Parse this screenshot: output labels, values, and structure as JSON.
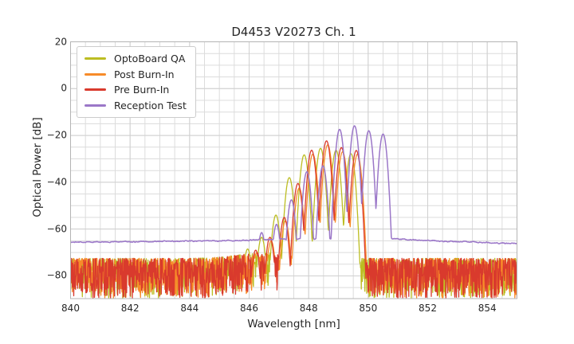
{
  "chart_data": {
    "type": "line",
    "title": "D4453 V20273 Ch. 1",
    "xlabel": "Wavelength [nm]",
    "ylabel": "Optical Power [dB]",
    "xlim": [
      840,
      855
    ],
    "ylim": [
      -89.7,
      20
    ],
    "x_major_ticks": [
      840,
      842,
      844,
      846,
      848,
      850,
      852,
      854
    ],
    "x_tick_labels": [
      "840",
      "842",
      "844",
      "846",
      "848",
      "850",
      "852",
      "854"
    ],
    "x_minor_step": 0.5,
    "y_major_ticks": [
      20,
      0,
      -20,
      -40,
      -60,
      -80
    ],
    "y_tick_labels": [
      "20",
      "0",
      "−20",
      "−40",
      "−60",
      "−80"
    ],
    "y_minor_step": 5,
    "grid": "major+minor",
    "legend_position": "upper left",
    "style": {
      "background": "#ffffff",
      "grid_minor_color": "#dcdcdc",
      "grid_major_color": "#d0d0d0",
      "spine_color": "#b4b4b4",
      "text_color": "#262626"
    },
    "noise_model": {
      "top_db": -72.5,
      "depth_db": 17,
      "shape_exp": 1.6,
      "onset_lift_db": 2.3,
      "onset_center_nm": 846.45,
      "onset_sigma_nm": 0.85,
      "clip_db": -89.7
    },
    "series": [
      {
        "name": "OptoBoard QA",
        "color": "#bcbd22",
        "kind": "modal+noise",
        "seed": 11,
        "mode_spacing_nm": 0.48,
        "valley_drop_db": 30,
        "modes": [
          [
            845.95,
            -68.5
          ],
          [
            846.42,
            -63.5
          ],
          [
            846.9,
            -54
          ],
          [
            847.35,
            -38
          ],
          [
            847.85,
            -28.3
          ],
          [
            848.4,
            -25.5
          ],
          [
            848.92,
            -26.3
          ],
          [
            849.42,
            -27.8
          ]
        ]
      },
      {
        "name": "Post Burn-In",
        "color": "#f78b29",
        "kind": "modal+noise",
        "seed": 22,
        "mode_spacing_nm": 0.48,
        "valley_drop_db": 30,
        "modes": [
          [
            846.26,
            -70
          ],
          [
            846.74,
            -65
          ],
          [
            847.22,
            -56.5
          ],
          [
            847.68,
            -42.5
          ],
          [
            848.14,
            -28
          ],
          [
            848.64,
            -24
          ],
          [
            849.14,
            -27
          ],
          [
            849.64,
            -28
          ]
        ]
      },
      {
        "name": "Pre Burn-In",
        "color": "#d93a2d",
        "kind": "modal+noise",
        "seed": 33,
        "mode_spacing_nm": 0.48,
        "valley_drop_db": 30,
        "modes": [
          [
            846.22,
            -69
          ],
          [
            846.7,
            -63.5
          ],
          [
            847.18,
            -55
          ],
          [
            847.64,
            -40.5
          ],
          [
            848.1,
            -26.3
          ],
          [
            848.6,
            -22.3
          ],
          [
            849.1,
            -25.2
          ],
          [
            849.6,
            -26.4
          ]
        ]
      },
      {
        "name": "Reception Test",
        "color": "#9b77c8",
        "kind": "modal+baseline",
        "seed": 44,
        "mode_spacing_nm": 0.5,
        "valley_drop_db": 36,
        "baseline_jitter_db": 0.3,
        "baseline": [
          [
            840,
            -65.6
          ],
          [
            843,
            -65.3
          ],
          [
            845.5,
            -64.9
          ],
          [
            846.4,
            -64.5
          ],
          [
            847.5,
            -64.2
          ],
          [
            850.5,
            -63.8
          ],
          [
            850.95,
            -64.1
          ],
          [
            851.6,
            -64.8
          ],
          [
            853,
            -65.3
          ],
          [
            855,
            -66.2
          ]
        ],
        "modes": [
          [
            846.42,
            -61.5
          ],
          [
            846.92,
            -58
          ],
          [
            847.42,
            -47.5
          ],
          [
            847.94,
            -35.5
          ],
          [
            848.48,
            -33
          ],
          [
            849.04,
            -17.4
          ],
          [
            849.54,
            -15.9
          ],
          [
            850.02,
            -18
          ],
          [
            850.5,
            -19.4
          ]
        ]
      }
    ]
  }
}
